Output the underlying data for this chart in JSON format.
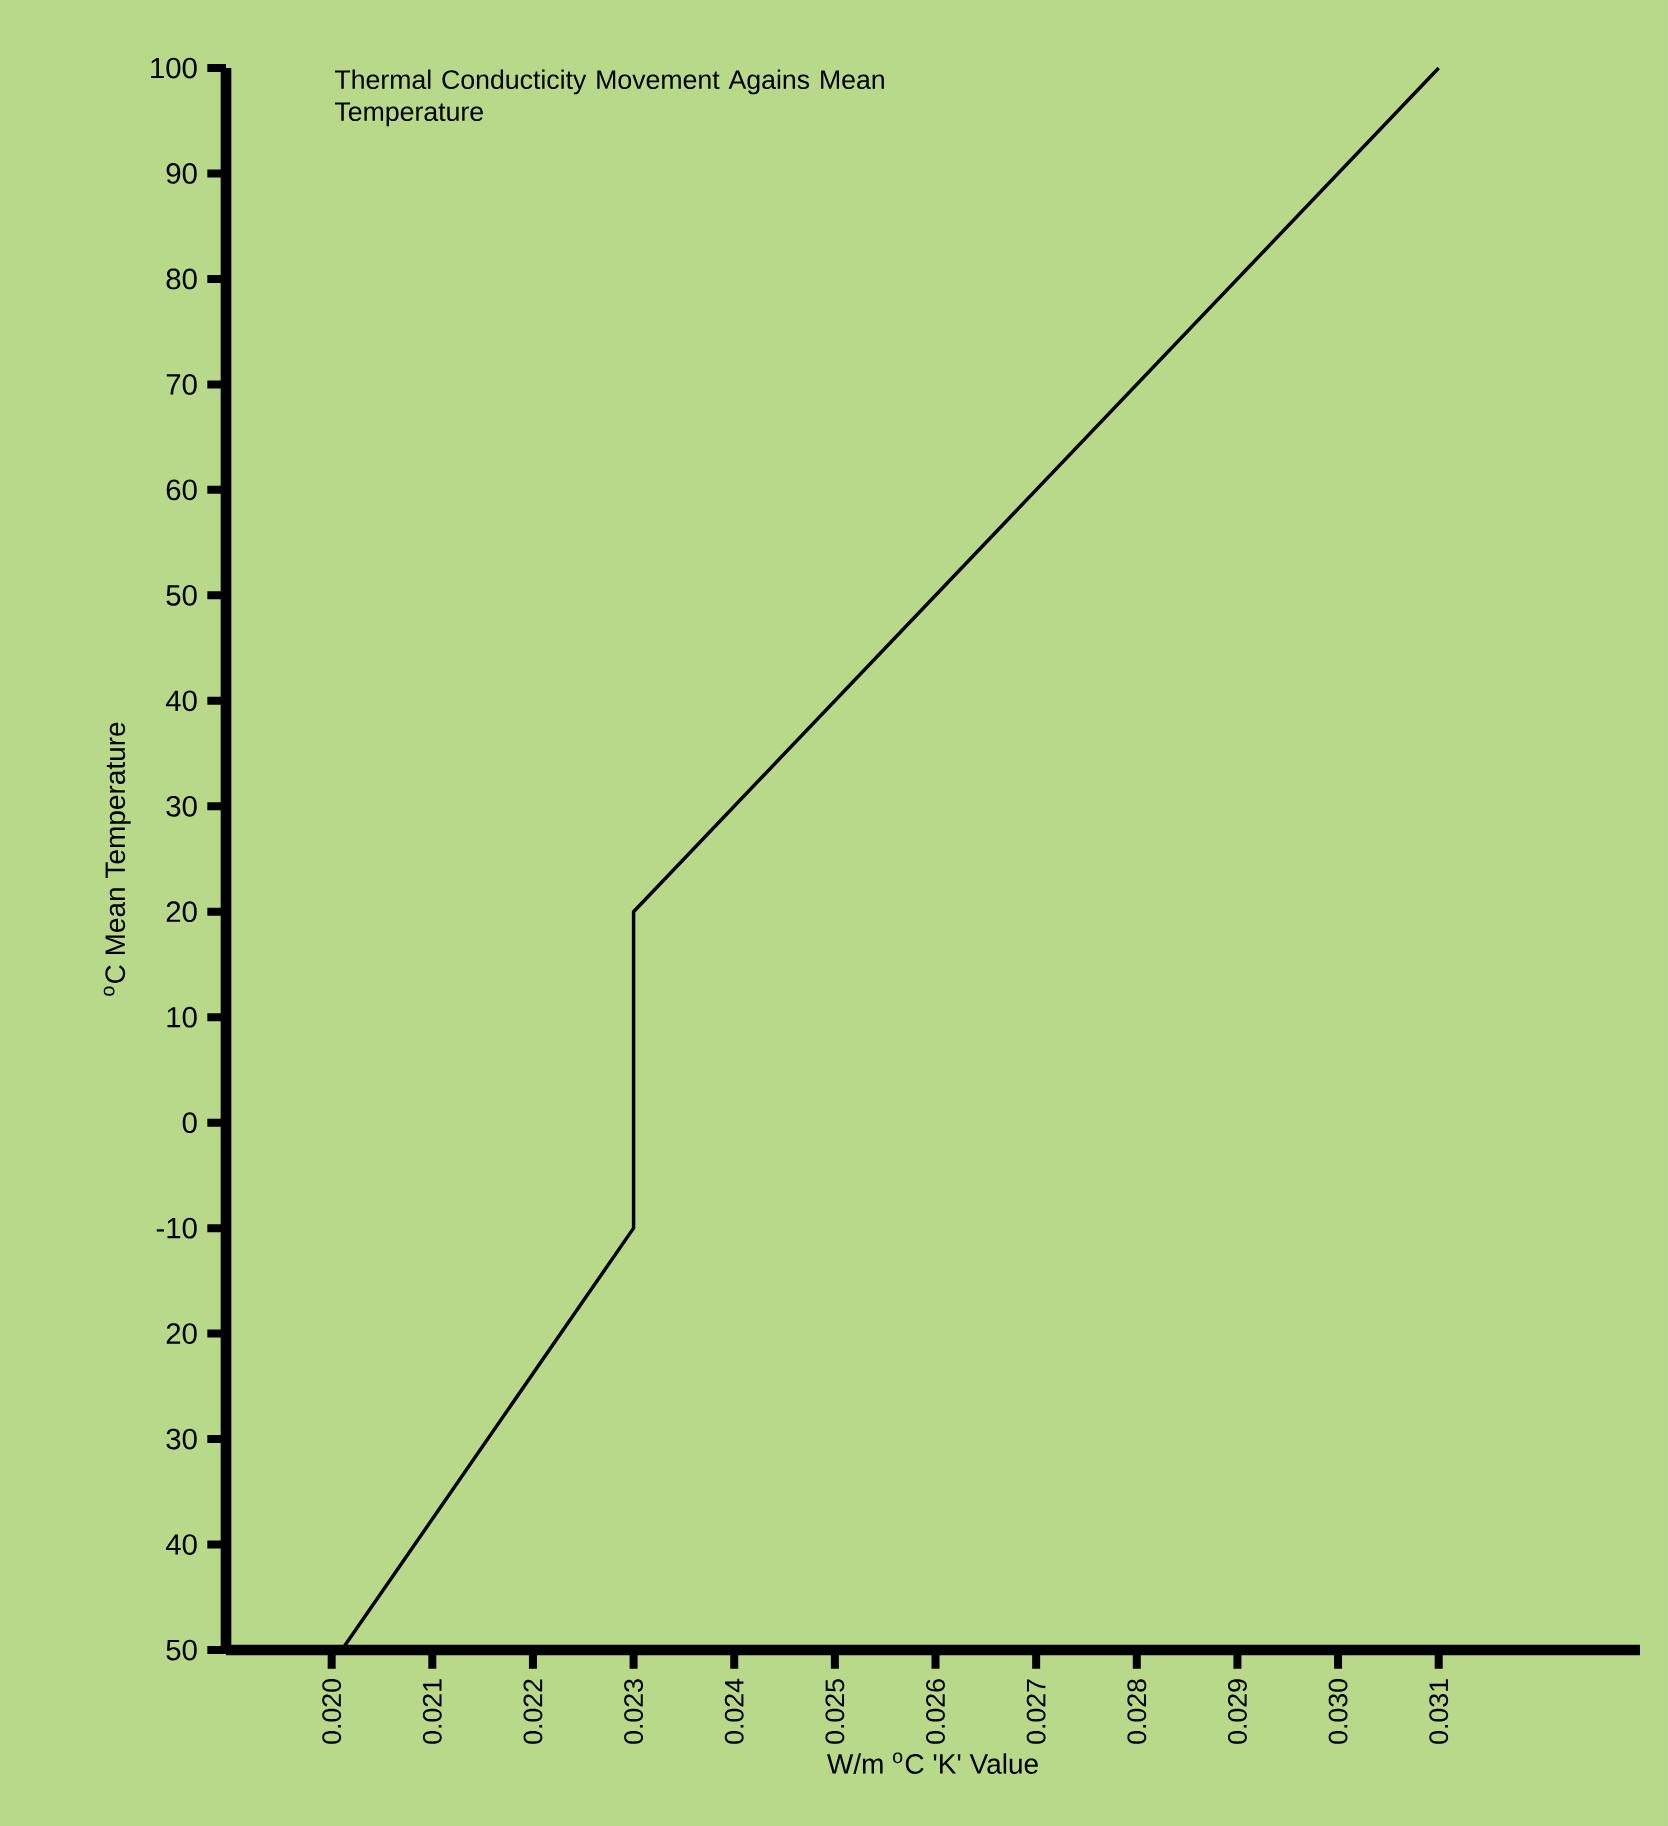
{
  "chart_data": {
    "type": "line",
    "title": "Thermal Conducticity Movement Agains Mean Temperature",
    "xlabel": "W/m $^{o}$C 'K' Value",
    "ylabel": "$^{o}$C Mean Temperature",
    "series": [
      {
        "color": "#000000",
        "x": [
          0.0201,
          0.023,
          0.023,
          0.031
        ],
        "values": [
          -50,
          -10,
          20,
          100
        ]
      }
    ],
    "xlim": [
      0.01895,
      0.033
    ],
    "ylim": [
      -50,
      100
    ],
    "xticks": [
      {
        "value": 0.02,
        "label": "0.020"
      },
      0.021,
      0.022,
      0.023,
      0.024,
      0.025,
      0.026,
      0.027,
      0.028,
      0.029,
      {
        "value": 0.03,
        "label": "0.030"
      },
      0.031
    ],
    "yticks": [
      {
        "value": -50,
        "label": "50"
      },
      {
        "value": -40,
        "label": "40"
      },
      {
        "value": -30,
        "label": "30"
      },
      {
        "value": -20,
        "label": "20"
      },
      -10,
      0,
      10,
      20,
      30,
      40,
      50,
      60,
      70,
      80,
      90,
      100
    ],
    "line_style": "solid",
    "grid": false
  }
}
